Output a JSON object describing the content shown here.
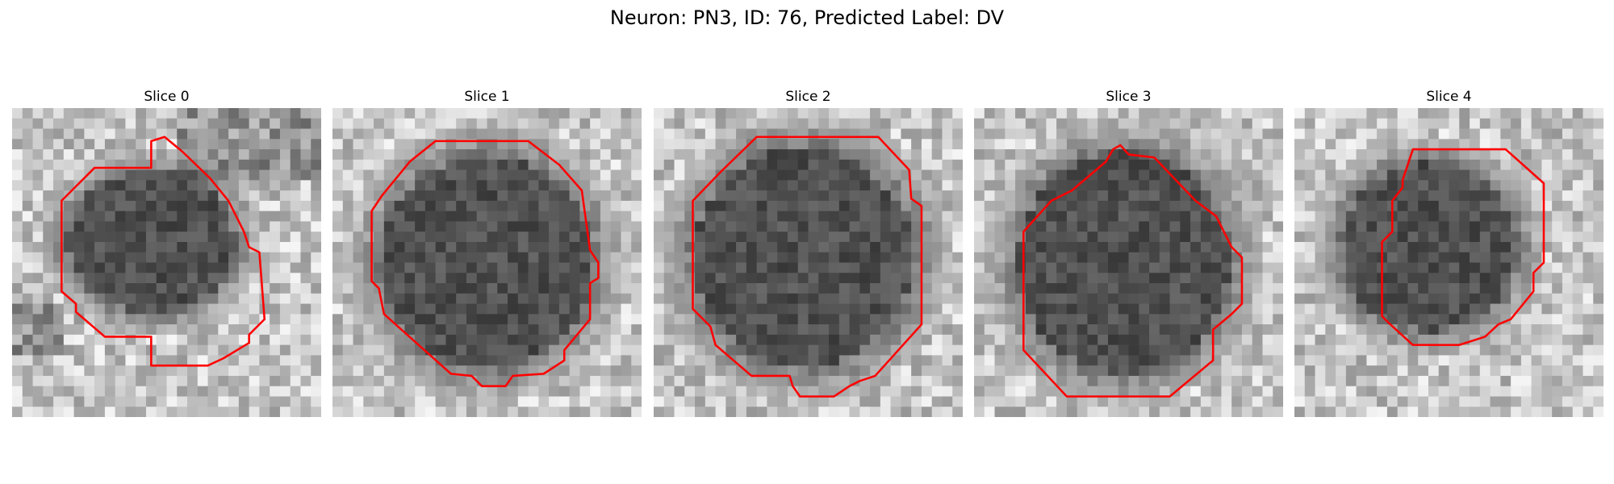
{
  "figure": {
    "title": "Neuron: PN3, ID: 76, Predicted Label: DV"
  },
  "panels": [
    {
      "title": "Slice 0"
    },
    {
      "title": "Slice 1"
    },
    {
      "title": "Slice 2"
    },
    {
      "title": "Slice 3"
    },
    {
      "title": "Slice 4"
    }
  ],
  "colors": {
    "contour": "#ff0000",
    "background": "#ffffff"
  }
}
